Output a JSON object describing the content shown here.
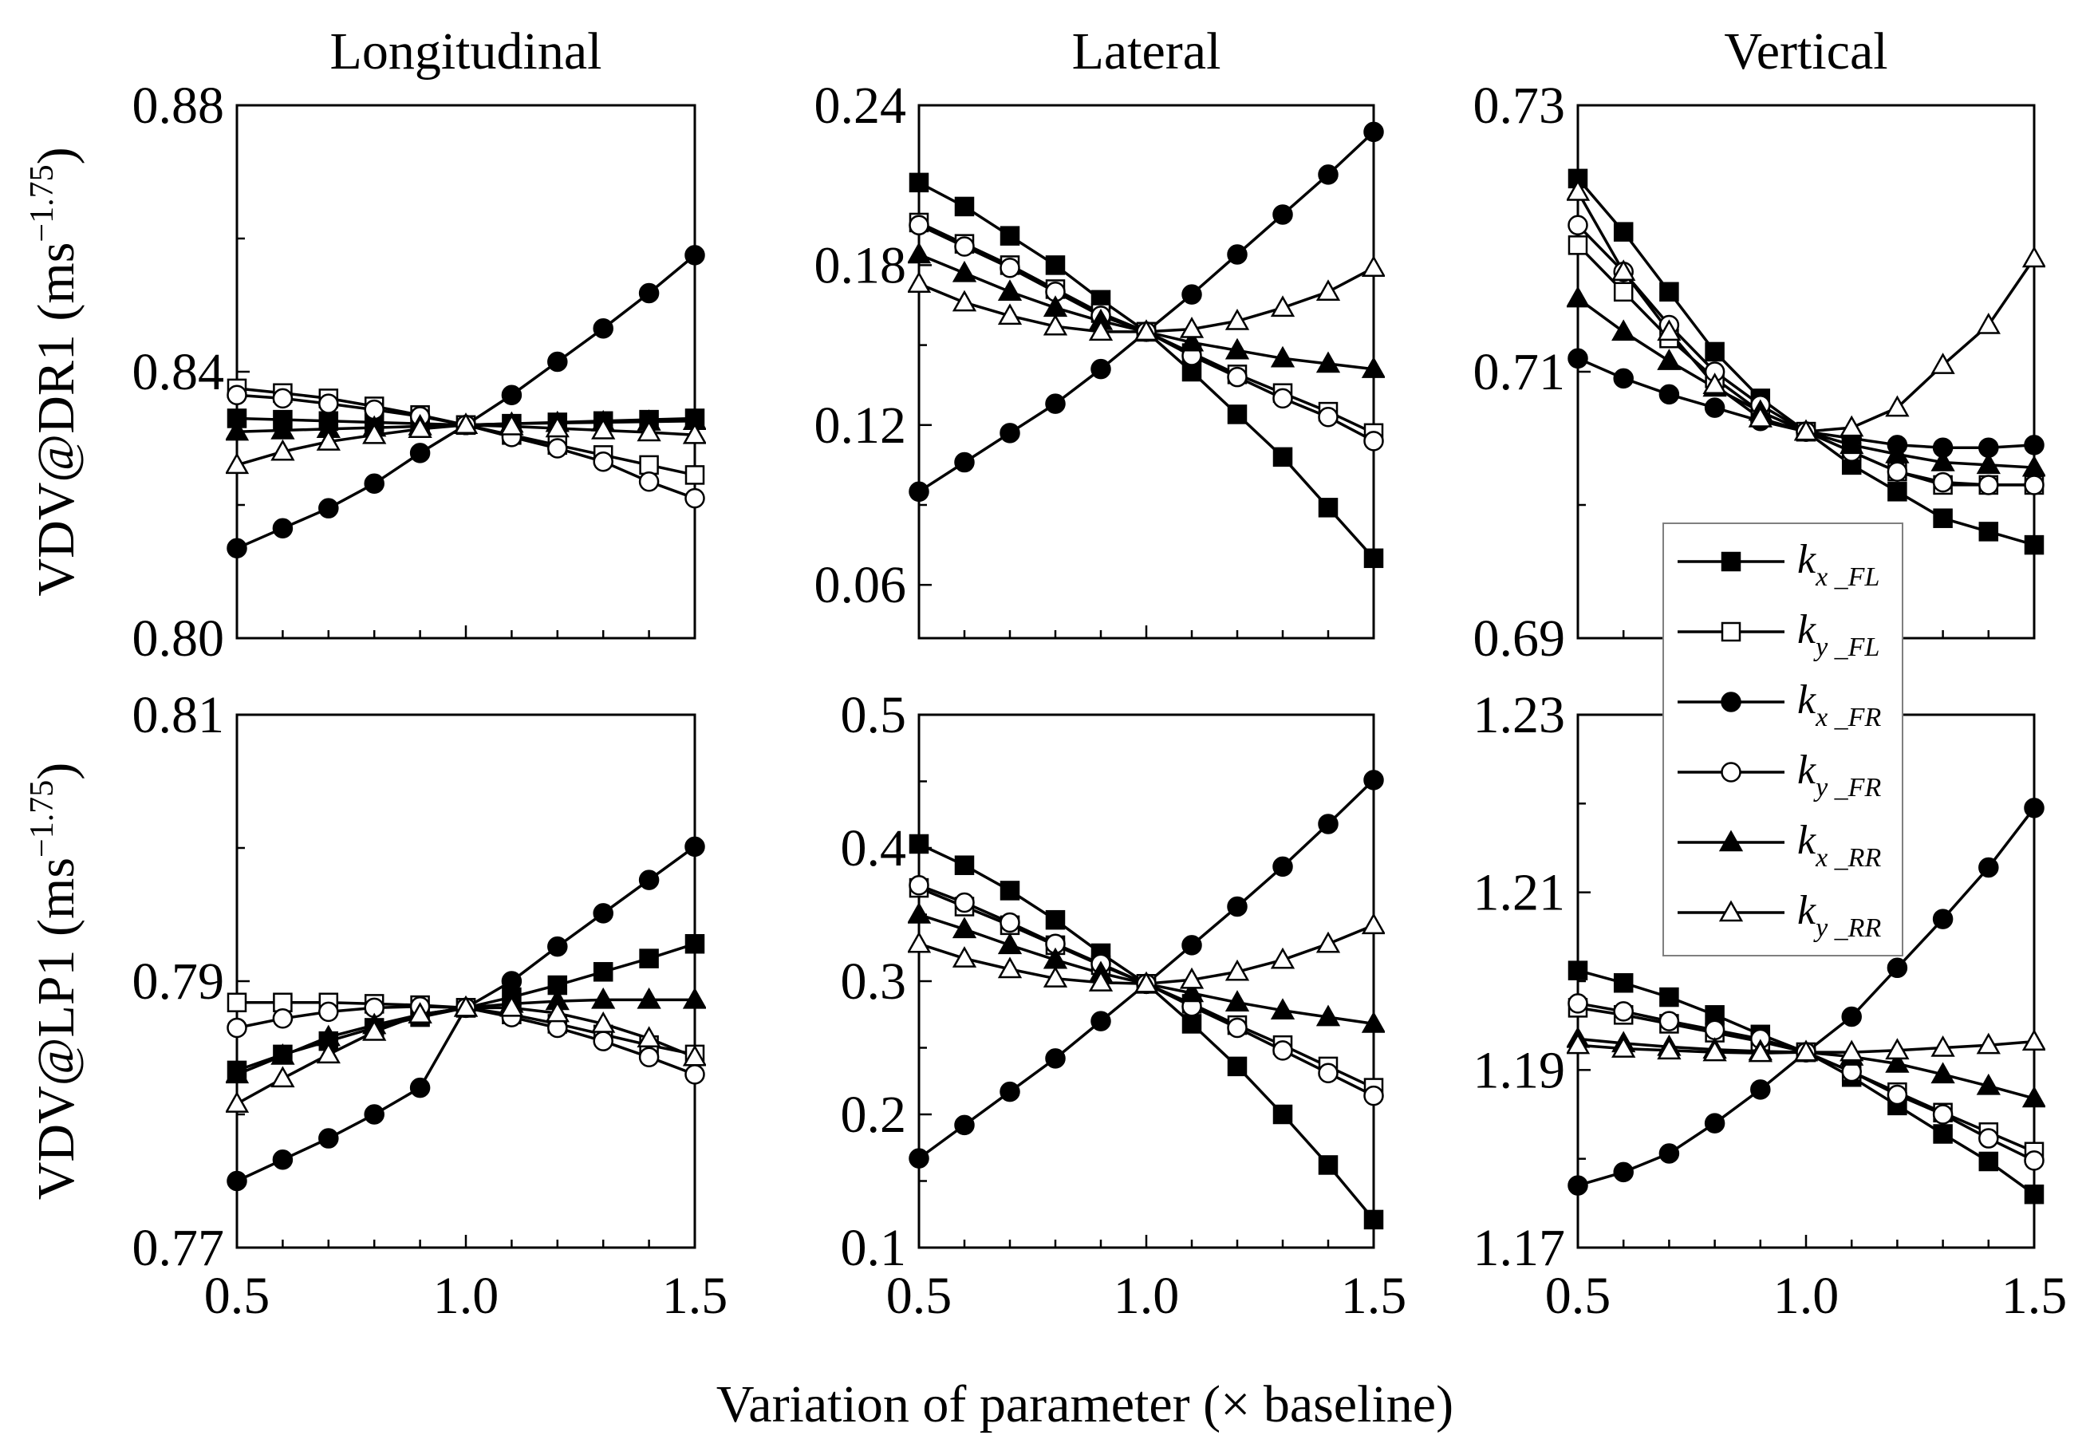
{
  "chart_data": {
    "type": "line",
    "xlabel": "Variation of parameter (× baseline)",
    "x": [
      0.5,
      0.6,
      0.7,
      0.8,
      0.9,
      1.0,
      1.1,
      1.2,
      1.3,
      1.4,
      1.5
    ],
    "x_tick_labels": [
      "0.5",
      "1.0",
      "1.5"
    ],
    "xlim": [
      0.5,
      1.5
    ],
    "columns": [
      "Longitudinal",
      "Lateral",
      "Vertical"
    ],
    "rows": [
      {
        "label_main": "VDV@DR1 (ms",
        "label_sup": "−1.75",
        "label_close": ")"
      },
      {
        "label_main": "VDV@LP1 (ms",
        "label_sup": "−1.75",
        "label_close": ")"
      }
    ],
    "legend": {
      "placement": "inside right, spanning both vertical panels",
      "entries": [
        {
          "base": "k",
          "sub": "x _FL",
          "marker": "filled-square"
        },
        {
          "base": "k",
          "sub": "y _FL",
          "marker": "open-square"
        },
        {
          "base": "k",
          "sub": "x _FR",
          "marker": "filled-circle"
        },
        {
          "base": "k",
          "sub": "y _FR",
          "marker": "open-circle"
        },
        {
          "base": "k",
          "sub": "x _RR",
          "marker": "filled-triangle"
        },
        {
          "base": "k",
          "sub": "y _RR",
          "marker": "open-triangle"
        }
      ]
    },
    "panels": [
      {
        "row": 0,
        "col": 0,
        "ylim": [
          0.8,
          0.88
        ],
        "yticks": [
          "0.80",
          "0.84",
          "0.88"
        ],
        "minor_y": [
          0.82,
          0.86
        ],
        "series": [
          {
            "name": "kx_FL",
            "values": [
              0.833,
              0.8328,
              0.8326,
              0.8324,
              0.8322,
              0.832,
              0.8322,
              0.8324,
              0.8326,
              0.8328,
              0.833
            ]
          },
          {
            "name": "ky_FL",
            "values": [
              0.8375,
              0.8368,
              0.836,
              0.8348,
              0.8335,
              0.832,
              0.8305,
              0.829,
              0.8275,
              0.826,
              0.8245
            ]
          },
          {
            "name": "kx_FR",
            "values": [
              0.8135,
              0.8165,
              0.8195,
              0.8232,
              0.8278,
              0.832,
              0.8365,
              0.8415,
              0.8465,
              0.8518,
              0.8575
            ]
          },
          {
            "name": "ky_FR",
            "values": [
              0.8365,
              0.836,
              0.8352,
              0.8343,
              0.8333,
              0.832,
              0.8302,
              0.8285,
              0.8265,
              0.8235,
              0.821
            ]
          },
          {
            "name": "kx_RR",
            "values": [
              0.831,
              0.8312,
              0.8314,
              0.8316,
              0.8318,
              0.832,
              0.8322,
              0.8323,
              0.8324,
              0.8325,
              0.8326
            ]
          },
          {
            "name": "ky_RR",
            "values": [
              0.826,
              0.828,
              0.8295,
              0.8305,
              0.8314,
              0.832,
              0.8318,
              0.8315,
              0.8312,
              0.8309,
              0.8305
            ]
          }
        ]
      },
      {
        "row": 0,
        "col": 1,
        "ylim": [
          0.04,
          0.24
        ],
        "yticks": [
          "0.06",
          "0.12",
          "0.18",
          "0.24"
        ],
        "minor_y": [
          0.09,
          0.15,
          0.21
        ],
        "series": [
          {
            "name": "kx_FL",
            "values": [
              0.211,
              0.202,
              0.191,
              0.18,
              0.167,
              0.155,
              0.14,
              0.124,
              0.108,
              0.089,
              0.07
            ]
          },
          {
            "name": "ky_FL",
            "values": [
              0.196,
              0.188,
              0.18,
              0.171,
              0.162,
              0.155,
              0.147,
              0.139,
              0.132,
              0.125,
              0.117
            ]
          },
          {
            "name": "kx_FR",
            "values": [
              0.095,
              0.106,
              0.117,
              0.128,
              0.141,
              0.155,
              0.169,
              0.184,
              0.199,
              0.214,
              0.23
            ]
          },
          {
            "name": "ky_FR",
            "values": [
              0.195,
              0.187,
              0.179,
              0.17,
              0.161,
              0.155,
              0.146,
              0.138,
              0.13,
              0.123,
              0.114
            ]
          },
          {
            "name": "kx_RR",
            "values": [
              0.184,
              0.177,
              0.17,
              0.164,
              0.159,
              0.155,
              0.151,
              0.148,
              0.145,
              0.143,
              0.141
            ]
          },
          {
            "name": "ky_RR",
            "values": [
              0.173,
              0.166,
              0.161,
              0.157,
              0.155,
              0.155,
              0.156,
              0.159,
              0.164,
              0.17,
              0.179
            ]
          }
        ]
      },
      {
        "row": 0,
        "col": 2,
        "ylim": [
          0.69,
          0.73
        ],
        "yticks": [
          "0.69",
          "0.71",
          "0.73"
        ],
        "minor_y": [
          0.7,
          0.72
        ],
        "series": [
          {
            "name": "kx_FL",
            "values": [
              0.7245,
              0.7205,
              0.716,
              0.7115,
              0.708,
              0.7055,
              0.703,
              0.701,
              0.699,
              0.698,
              0.697
            ]
          },
          {
            "name": "ky_FL",
            "values": [
              0.7195,
              0.716,
              0.7125,
              0.7095,
              0.707,
              0.7055,
              0.704,
              0.7025,
              0.7015,
              0.7015,
              0.7015
            ]
          },
          {
            "name": "kx_FR",
            "values": [
              0.711,
              0.7095,
              0.7083,
              0.7073,
              0.7063,
              0.7055,
              0.705,
              0.7045,
              0.7043,
              0.7043,
              0.7045
            ]
          },
          {
            "name": "ky_FR",
            "values": [
              0.721,
              0.7175,
              0.7135,
              0.71,
              0.7075,
              0.7055,
              0.704,
              0.7025,
              0.7017,
              0.7015,
              0.7015
            ]
          },
          {
            "name": "kx_RR",
            "values": [
              0.7155,
              0.713,
              0.7108,
              0.7088,
              0.707,
              0.7055,
              0.7045,
              0.7038,
              0.7032,
              0.703,
              0.7028
            ]
          },
          {
            "name": "ky_RR",
            "values": [
              0.7235,
              0.7175,
              0.713,
              0.709,
              0.7065,
              0.7055,
              0.7058,
              0.7073,
              0.7105,
              0.7135,
              0.7185
            ]
          }
        ]
      },
      {
        "row": 1,
        "col": 0,
        "ylim": [
          0.77,
          0.81
        ],
        "yticks": [
          "0.77",
          "0.79",
          "0.81"
        ],
        "minor_y": [
          0.78,
          0.8
        ],
        "series": [
          {
            "name": "kx_FL",
            "values": [
              0.7833,
              0.7845,
              0.7855,
              0.7865,
              0.7873,
              0.788,
              0.7888,
              0.7897,
              0.7907,
              0.7917,
              0.7928
            ]
          },
          {
            "name": "ky_FL",
            "values": [
              0.7884,
              0.7884,
              0.7884,
              0.7883,
              0.7882,
              0.788,
              0.7875,
              0.7868,
              0.786,
              0.7852,
              0.7845
            ]
          },
          {
            "name": "kx_FR",
            "values": [
              0.775,
              0.7766,
              0.7782,
              0.78,
              0.782,
              0.788,
              0.79,
              0.7926,
              0.7951,
              0.7976,
              0.8001
            ]
          },
          {
            "name": "ky_FR",
            "values": [
              0.7865,
              0.7872,
              0.7877,
              0.788,
              0.7881,
              0.788,
              0.7873,
              0.7865,
              0.7855,
              0.7843,
              0.783
            ]
          },
          {
            "name": "kx_RR",
            "values": [
              0.783,
              0.7844,
              0.7858,
              0.7867,
              0.7875,
              0.788,
              0.7883,
              0.7885,
              0.7886,
              0.7886,
              0.7886
            ]
          },
          {
            "name": "ky_RR",
            "values": [
              0.7808,
              0.7827,
              0.7845,
              0.7862,
              0.7875,
              0.788,
              0.788,
              0.7876,
              0.7868,
              0.7857,
              0.7843
            ]
          }
        ]
      },
      {
        "row": 1,
        "col": 1,
        "ylim": [
          0.1,
          0.5
        ],
        "yticks": [
          "0.1",
          "0.2",
          "0.3",
          "0.4",
          "0.5"
        ],
        "minor_y": [
          0.15,
          0.25,
          0.35,
          0.45
        ],
        "series": [
          {
            "name": "kx_FL",
            "values": [
              0.403,
              0.387,
              0.368,
              0.346,
              0.321,
              0.298,
              0.268,
              0.236,
              0.2,
              0.162,
              0.121
            ]
          },
          {
            "name": "ky_FL",
            "values": [
              0.37,
              0.356,
              0.342,
              0.327,
              0.312,
              0.298,
              0.283,
              0.267,
              0.252,
              0.236,
              0.22
            ]
          },
          {
            "name": "kx_FR",
            "values": [
              0.167,
              0.192,
              0.217,
              0.242,
              0.27,
              0.298,
              0.327,
              0.356,
              0.386,
              0.418,
              0.451
            ]
          },
          {
            "name": "ky_FR",
            "values": [
              0.372,
              0.359,
              0.344,
              0.328,
              0.313,
              0.298,
              0.281,
              0.265,
              0.248,
              0.231,
              0.214
            ]
          },
          {
            "name": "kx_RR",
            "values": [
              0.35,
              0.339,
              0.327,
              0.316,
              0.306,
              0.298,
              0.291,
              0.284,
              0.278,
              0.273,
              0.268
            ]
          },
          {
            "name": "ky_RR",
            "values": [
              0.328,
              0.317,
              0.309,
              0.302,
              0.299,
              0.298,
              0.301,
              0.307,
              0.316,
              0.328,
              0.342
            ]
          }
        ]
      },
      {
        "row": 1,
        "col": 2,
        "ylim": [
          1.17,
          1.23
        ],
        "yticks": [
          "1.17",
          "1.19",
          "1.21",
          "1.23"
        ],
        "minor_y": [
          1.18,
          1.2,
          1.22
        ],
        "series": [
          {
            "name": "kx_FL",
            "values": [
              1.2012,
              1.1998,
              1.1982,
              1.1962,
              1.194,
              1.192,
              1.1892,
              1.186,
              1.1828,
              1.1797,
              1.176
            ]
          },
          {
            "name": "ky_FL",
            "values": [
              1.197,
              1.1962,
              1.1952,
              1.1942,
              1.1932,
              1.192,
              1.1898,
              1.1875,
              1.1852,
              1.183,
              1.1808
            ]
          },
          {
            "name": "kx_FR",
            "values": [
              1.177,
              1.1785,
              1.1806,
              1.184,
              1.1878,
              1.192,
              1.196,
              1.2015,
              1.207,
              1.2128,
              1.2195
            ]
          },
          {
            "name": "ky_FR",
            "values": [
              1.1975,
              1.1966,
              1.1955,
              1.1945,
              1.1935,
              1.192,
              1.1898,
              1.1872,
              1.185,
              1.1823,
              1.1798
            ]
          },
          {
            "name": "kx_RR",
            "values": [
              1.1935,
              1.193,
              1.1926,
              1.1923,
              1.1921,
              1.192,
              1.1915,
              1.1907,
              1.1895,
              1.1882,
              1.1868
            ]
          },
          {
            "name": "ky_RR",
            "values": [
              1.1928,
              1.1924,
              1.1922,
              1.192,
              1.1919,
              1.192,
              1.192,
              1.1922,
              1.1925,
              1.1928,
              1.1932
            ]
          }
        ]
      }
    ]
  }
}
